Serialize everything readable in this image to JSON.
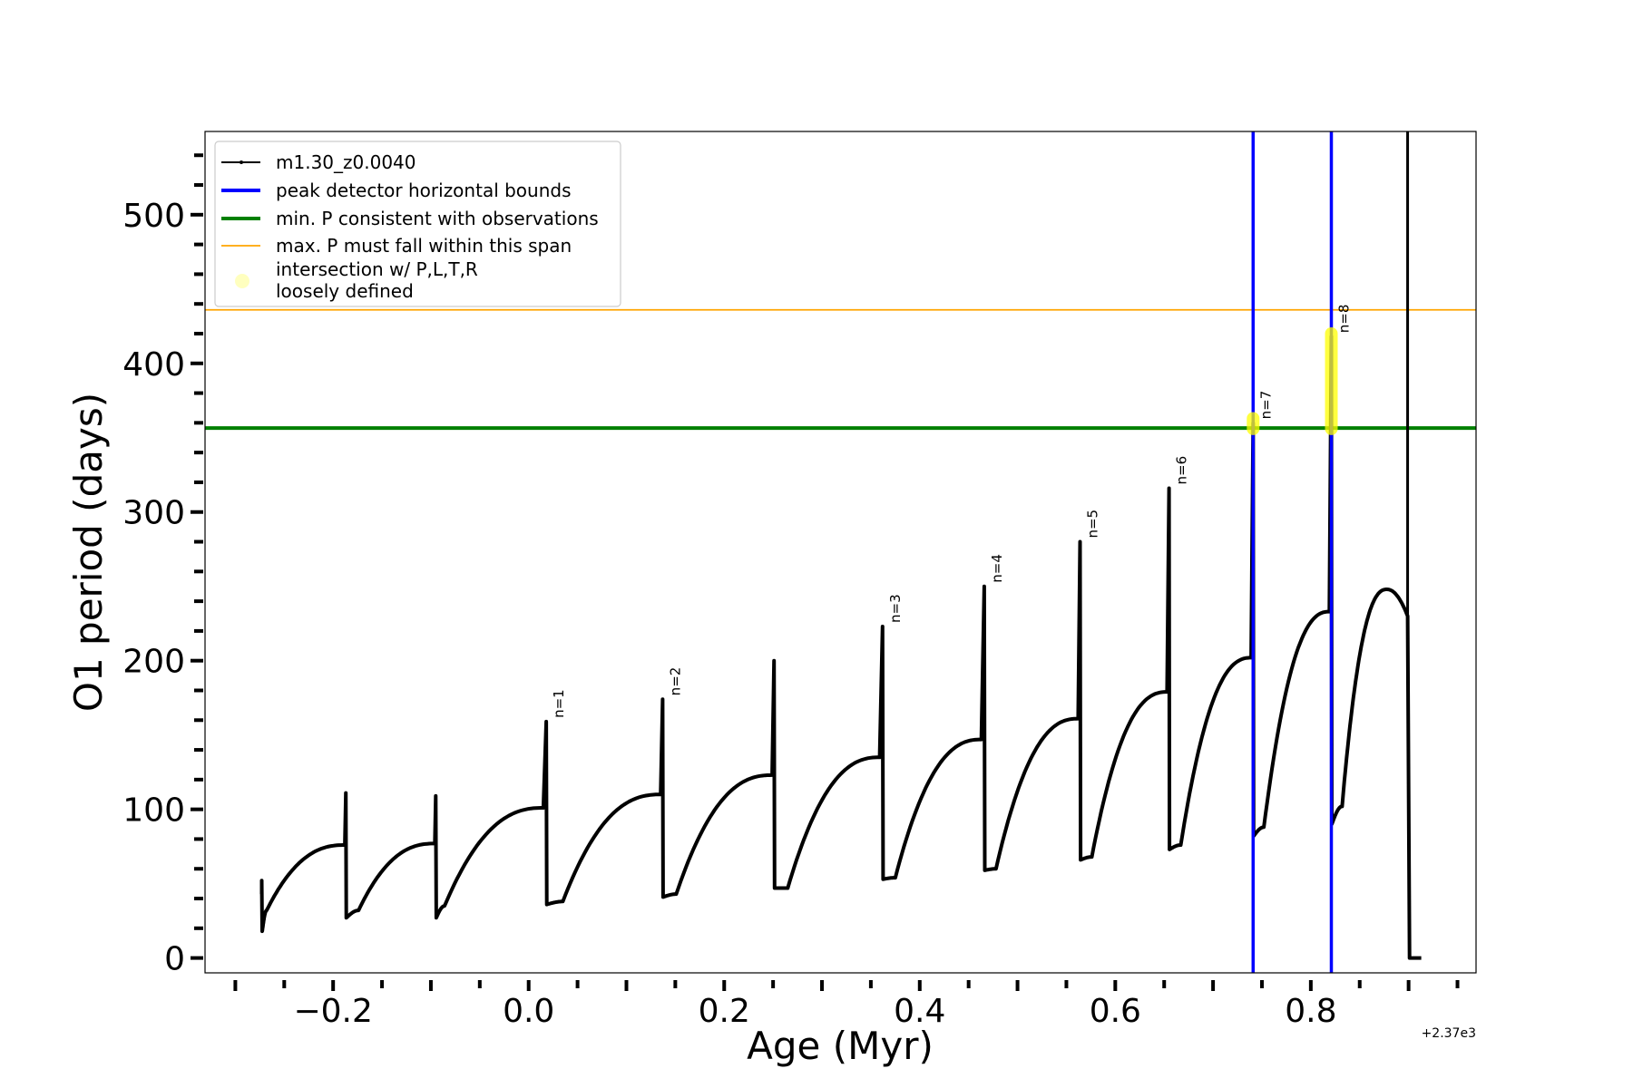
{
  "chart_data": {
    "type": "line",
    "title": "",
    "xlabel": "Age (Myr)",
    "ylabel": "O1 period (days)",
    "x_offset_label": "+2.37e3",
    "xlim": [
      -0.331,
      0.969
    ],
    "ylim": [
      -10,
      556
    ],
    "x_ticks": [
      -0.2,
      0.0,
      0.2,
      0.4,
      0.6,
      0.8
    ],
    "x_tick_labels": [
      "−0.2",
      "0.0",
      "0.2",
      "0.4",
      "0.6",
      "0.8"
    ],
    "y_ticks": [
      0,
      100,
      200,
      300,
      400,
      500
    ],
    "y_tick_labels": [
      "0",
      "100",
      "200",
      "300",
      "400",
      "500"
    ],
    "legend": {
      "placement": "top-left",
      "entries": [
        {
          "label": "m1.30_z0.0040",
          "color": "#000000",
          "style": "line-marker"
        },
        {
          "label": "peak detector horizontal bounds",
          "color": "#0000ff",
          "style": "thick-line"
        },
        {
          "label": "min. P consistent with observations",
          "color": "#008000",
          "style": "thick-line"
        },
        {
          "label": "max. P must fall within this span",
          "color": "#ffa500",
          "style": "thin-line"
        },
        {
          "label": "intersection w/ P,L,T,R",
          "label2": "loosely defined",
          "color": "#ffff00",
          "style": "dot"
        }
      ]
    },
    "series_name": "m1.30_z0.0040",
    "start": {
      "age": -0.273,
      "value": 43
    },
    "cycles": [
      {
        "tp_age": -0.273,
        "spike": 52,
        "low": 18,
        "min_age": -0.268,
        "min_value": 32,
        "end_age": -0.188,
        "end_value": 76,
        "label": ""
      },
      {
        "tp_age": -0.187,
        "spike": 111,
        "low": 27,
        "min_age": -0.174,
        "min_value": 32,
        "end_age": -0.096,
        "end_value": 77,
        "label": ""
      },
      {
        "tp_age": -0.095,
        "spike": 109,
        "low": 27,
        "min_age": -0.086,
        "min_value": 35,
        "end_age": 0.015,
        "end_value": 101,
        "label": ""
      },
      {
        "tp_age": 0.018,
        "spike": 159,
        "low": 36,
        "min_age": 0.035,
        "min_value": 38,
        "end_age": 0.135,
        "end_value": 110,
        "label": "n=1"
      },
      {
        "tp_age": 0.137,
        "spike": 174,
        "low": 41,
        "min_age": 0.151,
        "min_value": 43,
        "end_age": 0.249,
        "end_value": 123,
        "label": "n=2"
      },
      {
        "tp_age": 0.251,
        "spike": 200,
        "low": 47,
        "min_age": 0.265,
        "min_value": 47,
        "end_age": 0.359,
        "end_value": 135,
        "label": ""
      },
      {
        "tp_age": 0.362,
        "spike": 223,
        "low": 53,
        "min_age": 0.375,
        "min_value": 54,
        "end_age": 0.463,
        "end_value": 147,
        "label": "n=3"
      },
      {
        "tp_age": 0.466,
        "spike": 250,
        "low": 59,
        "min_age": 0.478,
        "min_value": 60,
        "end_age": 0.562,
        "end_value": 161,
        "label": "n=4"
      },
      {
        "tp_age": 0.564,
        "spike": 280,
        "low": 66,
        "min_age": 0.576,
        "min_value": 68,
        "end_age": 0.653,
        "end_value": 179,
        "label": "n=5"
      },
      {
        "tp_age": 0.655,
        "spike": 316,
        "low": 73,
        "min_age": 0.667,
        "min_value": 76,
        "end_age": 0.739,
        "end_value": 202,
        "label": "n=6"
      },
      {
        "tp_age": 0.741,
        "spike": 360,
        "low": 82,
        "min_age": 0.752,
        "min_value": 88,
        "end_age": 0.819,
        "end_value": 233,
        "label": "n=7"
      },
      {
        "tp_age": 0.821,
        "spike": 418,
        "low": 90,
        "min_age": 0.832,
        "min_value": 102,
        "end_age": 0.878,
        "end_value": 248,
        "label": "n=8"
      }
    ],
    "final_drop": {
      "age": 0.899,
      "value_before": 230,
      "value_after": 0,
      "end_age": 0.913,
      "vertical_line_age": 0.899
    },
    "peak_detector_bounds": [
      0.741,
      0.821
    ],
    "min_period": 356.5,
    "max_period_line": 436,
    "intersections": [
      {
        "age": 0.741,
        "from": 356,
        "to": 363
      },
      {
        "age": 0.821,
        "from": 356,
        "to": 420
      }
    ],
    "grid": false
  }
}
